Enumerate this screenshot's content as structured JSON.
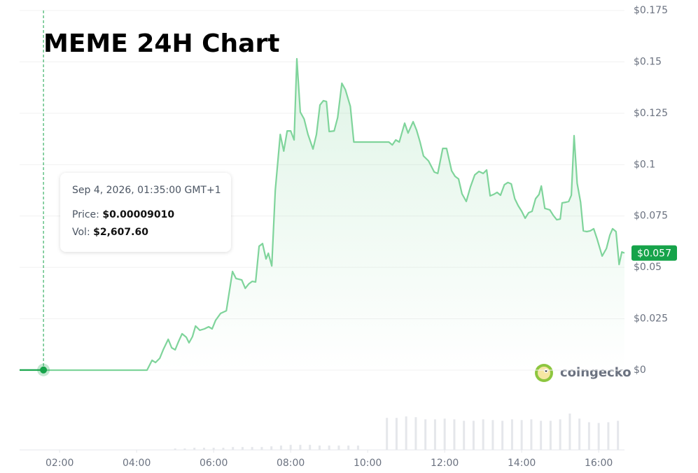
{
  "chart_data": {
    "type": "line",
    "title": "MEME 24H Chart",
    "watermark": "coingecko",
    "color": "#7fd49b",
    "series": [
      {
        "name": "Price",
        "x": [
          0.96,
          4.27,
          4.4,
          4.49,
          4.6,
          4.69,
          4.82,
          4.91,
          5.0,
          5.09,
          5.18,
          5.29,
          5.36,
          5.45,
          5.53,
          5.64,
          5.76,
          5.87,
          5.96,
          6.05,
          6.18,
          6.33,
          6.49,
          6.58,
          6.73,
          6.82,
          6.91,
          7.0,
          7.09,
          7.18,
          7.27,
          7.36,
          7.42,
          7.51,
          7.6,
          7.73,
          7.82,
          7.91,
          8.0,
          8.09,
          8.16,
          8.25,
          8.35,
          8.45,
          8.58,
          8.67,
          8.76,
          8.85,
          8.93,
          9.0,
          9.13,
          9.22,
          9.33,
          9.42,
          9.55,
          9.64,
          10.55,
          10.64,
          10.73,
          10.82,
          10.96,
          11.05,
          11.18,
          11.27,
          11.36,
          11.45,
          11.58,
          11.73,
          11.82,
          11.95,
          12.05,
          12.18,
          12.27,
          12.36,
          12.45,
          12.56,
          12.67,
          12.78,
          12.89,
          13.0,
          13.09,
          13.18,
          13.27,
          13.36,
          13.45,
          13.55,
          13.64,
          13.73,
          13.82,
          13.91,
          14.0,
          14.09,
          14.18,
          14.27,
          14.36,
          14.45,
          14.51,
          14.6,
          14.73,
          14.82,
          14.91,
          15.0,
          15.05,
          15.15,
          15.22,
          15.29,
          15.36,
          15.44,
          15.53,
          15.6,
          15.69,
          15.78,
          15.87,
          15.96,
          16.09,
          16.2,
          16.29,
          16.36,
          16.45,
          16.53,
          16.6,
          16.67
        ],
        "values": [
          0,
          0,
          0.0048,
          0.0037,
          0.0058,
          0.0099,
          0.015,
          0.0109,
          0.0099,
          0.014,
          0.0177,
          0.016,
          0.0133,
          0.0163,
          0.0215,
          0.0194,
          0.0201,
          0.0211,
          0.0201,
          0.0242,
          0.0276,
          0.0289,
          0.048,
          0.0446,
          0.0439,
          0.0398,
          0.0419,
          0.0432,
          0.0429,
          0.0603,
          0.0616,
          0.0541,
          0.0569,
          0.0507,
          0.0875,
          0.1147,
          0.1066,
          0.1164,
          0.1164,
          0.112,
          0.1515,
          0.1256,
          0.1222,
          0.1147,
          0.1076,
          0.1147,
          0.129,
          0.1311,
          0.1307,
          0.1161,
          0.1164,
          0.1229,
          0.1396,
          0.1365,
          0.1284,
          0.111,
          0.111,
          0.1096,
          0.112,
          0.111,
          0.1202,
          0.1154,
          0.1209,
          0.1168,
          0.111,
          0.1042,
          0.1018,
          0.0964,
          0.0957,
          0.1079,
          0.1079,
          0.097,
          0.0943,
          0.093,
          0.0858,
          0.0821,
          0.0892,
          0.095,
          0.0967,
          0.0957,
          0.0974,
          0.0848,
          0.0855,
          0.0865,
          0.0851,
          0.0902,
          0.0913,
          0.0906,
          0.0834,
          0.08,
          0.0773,
          0.0739,
          0.0766,
          0.0773,
          0.0834,
          0.0855,
          0.0896,
          0.0787,
          0.078,
          0.0753,
          0.0732,
          0.0735,
          0.0814,
          0.0817,
          0.0821,
          0.0851,
          0.1141,
          0.0909,
          0.0817,
          0.0678,
          0.0674,
          0.0678,
          0.0688,
          0.0637,
          0.0555,
          0.0592,
          0.0657,
          0.0688,
          0.0674,
          0.0514,
          0.0575,
          0.057
        ]
      }
    ],
    "volume": {
      "x": [
        5.0,
        5.25,
        5.5,
        5.75,
        6.0,
        6.25,
        6.5,
        6.75,
        7.0,
        7.25,
        7.5,
        7.75,
        8.0,
        8.25,
        8.5,
        8.75,
        9.0,
        9.25,
        9.5,
        9.75,
        10.5,
        10.75,
        11.0,
        11.25,
        11.5,
        11.75,
        12.0,
        12.25,
        12.5,
        12.75,
        13.0,
        13.25,
        13.5,
        13.75,
        14.0,
        14.25,
        14.5,
        14.75,
        15.0,
        15.25,
        15.5,
        15.75,
        16.0,
        16.25,
        16.5
      ],
      "values": [
        2,
        2,
        3,
        3,
        3,
        3,
        4,
        4,
        4,
        4,
        5,
        6,
        7,
        7,
        7,
        6,
        6,
        6,
        6,
        6,
        44,
        44,
        46,
        45,
        42,
        42,
        43,
        42,
        40,
        40,
        42,
        41,
        40,
        42,
        41,
        42,
        40,
        40,
        42,
        50,
        43,
        38,
        37,
        38,
        40
      ]
    },
    "xlim": [
      0.96,
      16.67
    ],
    "xticks": [
      {
        "value": 2,
        "label": "02:00"
      },
      {
        "value": 4,
        "label": "04:00"
      },
      {
        "value": 6,
        "label": "06:00"
      },
      {
        "value": 8,
        "label": "08:00"
      },
      {
        "value": 10,
        "label": "10:00"
      },
      {
        "value": 12,
        "label": "12:00"
      },
      {
        "value": 14,
        "label": "14:00"
      },
      {
        "value": 16,
        "label": "16:00"
      }
    ],
    "ylim": [
      0,
      0.175
    ],
    "yticks": [
      {
        "value": 0,
        "label": "$0"
      },
      {
        "value": 0.025,
        "label": "$0.025"
      },
      {
        "value": 0.05,
        "label": "$0.05"
      },
      {
        "value": 0.075,
        "label": "$0.075"
      },
      {
        "value": 0.1,
        "label": "$0.1"
      },
      {
        "value": 0.125,
        "label": "$0.125"
      },
      {
        "value": 0.15,
        "label": "$0.15"
      },
      {
        "value": 0.175,
        "label": "$0.175"
      }
    ],
    "grid": true,
    "current_price": {
      "value": 0.057,
      "label": "$0.057"
    },
    "hover": {
      "x": 1.58,
      "date": "Sep 4, 2026, 01:35:00 GMT+1",
      "price_label": "Price:",
      "price": {
        "value": 9.01e-05,
        "label": "$0.00009010"
      },
      "vol_label": "Vol:",
      "vol": "$2,607.60"
    }
  }
}
